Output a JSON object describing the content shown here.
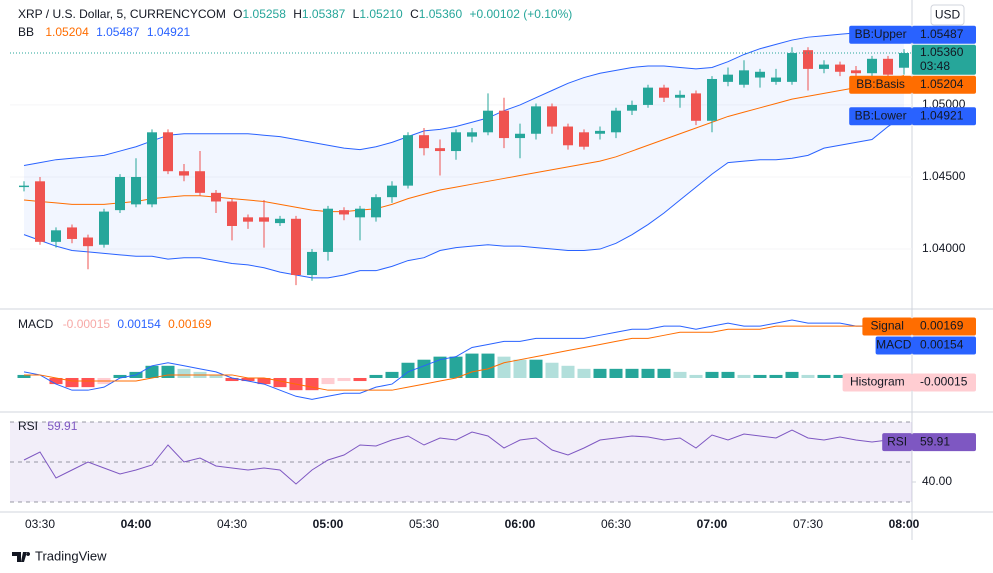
{
  "chart_data": [
    {
      "type": "candlestick",
      "title": "XRP / U.S. Dollar, 5, CURRENCYCOM",
      "ohlc": [
        {
          "label": "O",
          "value": "1.05258"
        },
        {
          "label": "H",
          "value": "1.05387"
        },
        {
          "label": "L",
          "value": "1.05210"
        },
        {
          "label": "C",
          "value": "1.05360"
        }
      ],
      "change": "+0.00102 (+0.10%)",
      "currency": "USD",
      "close_label": "1.05360",
      "countdown": "03:48",
      "up_color": "#26a69a",
      "down_color": "#ef5350",
      "categories": [
        null,
        "03:30",
        null,
        null,
        null,
        null,
        null,
        "04:00",
        null,
        null,
        null,
        null,
        null,
        "04:30",
        null,
        null,
        null,
        null,
        null,
        "05:00",
        null,
        null,
        null,
        null,
        null,
        "05:30",
        null,
        null,
        null,
        null,
        null,
        "06:00",
        null,
        null,
        null,
        null,
        null,
        "06:30",
        null,
        null,
        null,
        null,
        null,
        "07:00",
        null,
        null,
        null,
        null,
        null,
        "07:30",
        null,
        null,
        null,
        null,
        null,
        "08:00"
      ],
      "open": [
        1.0443,
        1.0447,
        1.0405,
        1.0415,
        1.0408,
        1.0403,
        1.0427,
        1.0431,
        1.0431,
        1.0481,
        1.0454,
        1.0454,
        1.0439,
        1.0433,
        1.0422,
        1.0422,
        1.0418,
        1.0421,
        1.0382,
        1.0398,
        1.0427,
        1.0422,
        1.0422,
        1.0436,
        1.0444,
        1.0479,
        1.047,
        1.0468,
        1.0478,
        1.0481,
        1.0496,
        1.0477,
        1.048,
        1.0499,
        1.0485,
        1.0481,
        1.048,
        1.0481,
        1.0496,
        1.05,
        1.0512,
        1.0505,
        1.0508,
        1.0489,
        1.0516,
        1.0514,
        1.0519,
        1.0516,
        1.0516,
        1.0538,
        1.0525,
        1.0528,
        1.0524,
        1.0522,
        1.0532,
        1.05258
      ],
      "high": [
        1.0447,
        1.045,
        1.0415,
        1.0417,
        1.041,
        1.0428,
        1.0452,
        1.0463,
        1.0483,
        1.0483,
        1.0459,
        1.0468,
        1.0441,
        1.0435,
        1.0424,
        1.0434,
        1.0423,
        1.0423,
        1.04,
        1.043,
        1.0429,
        1.043,
        1.0438,
        1.0447,
        1.0481,
        1.0484,
        1.0476,
        1.0483,
        1.0484,
        1.0508,
        1.0505,
        1.0487,
        1.0501,
        1.0501,
        1.0487,
        1.0483,
        1.0485,
        1.0498,
        1.0503,
        1.0514,
        1.0514,
        1.051,
        1.051,
        1.052,
        1.0526,
        1.0531,
        1.0525,
        1.0525,
        1.054,
        1.054,
        1.0531,
        1.053,
        1.0527,
        1.0534,
        1.0534,
        1.05387
      ],
      "low": [
        1.044,
        1.0403,
        1.0401,
        1.0404,
        1.0386,
        1.0401,
        1.0425,
        1.0429,
        1.0429,
        1.0452,
        1.0447,
        1.0437,
        1.0425,
        1.0406,
        1.0414,
        1.0401,
        1.0416,
        1.0375,
        1.0378,
        1.0392,
        1.042,
        1.0406,
        1.0419,
        1.0432,
        1.0442,
        1.0465,
        1.0451,
        1.0462,
        1.0474,
        1.0479,
        1.047,
        1.0463,
        1.0476,
        1.048,
        1.0469,
        1.0469,
        1.0476,
        1.0477,
        1.0493,
        1.0498,
        1.0502,
        1.0498,
        1.0486,
        1.0481,
        1.0513,
        1.0512,
        1.0512,
        1.0514,
        1.0514,
        1.051,
        1.0522,
        1.052,
        1.0519,
        1.0519,
        1.0519,
        1.0521
      ],
      "close": [
        1.0444,
        1.0405,
        1.0413,
        1.0407,
        1.0402,
        1.0426,
        1.045,
        1.045,
        1.0481,
        1.0454,
        1.0451,
        1.0439,
        1.0433,
        1.0416,
        1.0419,
        1.0419,
        1.0421,
        1.0382,
        1.0398,
        1.0428,
        1.0424,
        1.0428,
        1.0436,
        1.0444,
        1.0479,
        1.047,
        1.0468,
        1.0481,
        1.0481,
        1.0496,
        1.0477,
        1.048,
        1.0499,
        1.0485,
        1.0472,
        1.0471,
        1.0482,
        1.0496,
        1.05,
        1.0512,
        1.0505,
        1.0507,
        1.0489,
        1.0518,
        1.0521,
        1.0524,
        1.0523,
        1.0519,
        1.0536,
        1.0525,
        1.0528,
        1.0523,
        1.0522,
        1.0532,
        1.0521,
        1.0536
      ],
      "ylim": [
        1.03591,
        1.05728
      ],
      "yticks": [
        {
          "value": 1.04,
          "label": "1.04000"
        },
        {
          "value": 1.045,
          "label": "1.04500"
        },
        {
          "value": 1.05,
          "label": "1.05000"
        }
      ],
      "indicator": {
        "name": "BB",
        "fill": "rgba(41,98,255,0.06)",
        "series": [
          {
            "name": "BB:Upper",
            "color": "#2962ff",
            "values": [
              1.0458,
              1.046,
              1.0462,
              1.0463,
              1.0464,
              1.0465,
              1.0468,
              1.0471,
              1.0475,
              1.0479,
              1.048,
              1.048,
              1.048,
              1.048,
              1.048,
              1.0479,
              1.0478,
              1.0476,
              1.0474,
              1.0472,
              1.047,
              1.0469,
              1.0471,
              1.0474,
              1.0478,
              1.0482,
              1.0483,
              1.0485,
              1.0488,
              1.0491,
              1.0496,
              1.05,
              1.0505,
              1.051,
              1.0515,
              1.0519,
              1.0522,
              1.0524,
              1.0526,
              1.0527,
              1.0527,
              1.0526,
              1.0525,
              1.0526,
              1.053,
              1.0535,
              1.0539,
              1.0542,
              1.0545,
              1.0547,
              1.0548,
              1.0549,
              1.055,
              1.055,
              1.0549,
              1.05487
            ]
          },
          {
            "name": "BB:Basis",
            "color": "#ff6d00",
            "values": [
              1.0434,
              1.0433,
              1.0432,
              1.0431,
              1.0431,
              1.0431,
              1.0432,
              1.0433,
              1.0435,
              1.0436,
              1.0437,
              1.0437,
              1.0436,
              1.0435,
              1.0434,
              1.0433,
              1.0431,
              1.0429,
              1.0427,
              1.0426,
              1.0426,
              1.0427,
              1.0428,
              1.0431,
              1.0435,
              1.0438,
              1.0441,
              1.0443,
              1.0445,
              1.0447,
              1.0449,
              1.0451,
              1.0453,
              1.0455,
              1.0457,
              1.0459,
              1.0461,
              1.0464,
              1.0468,
              1.0472,
              1.0476,
              1.048,
              1.0484,
              1.0488,
              1.0492,
              1.0495,
              1.0498,
              1.0501,
              1.0504,
              1.0506,
              1.0508,
              1.051,
              1.0512,
              1.0514,
              1.0517,
              1.05204
            ]
          },
          {
            "name": "BB:Lower",
            "color": "#2962ff",
            "values": [
              1.041,
              1.0406,
              1.0402,
              1.0399,
              1.0398,
              1.0397,
              1.0396,
              1.0395,
              1.0395,
              1.0393,
              1.0394,
              1.0394,
              1.0392,
              1.039,
              1.0389,
              1.0387,
              1.0384,
              1.0382,
              1.038,
              1.038,
              1.0382,
              1.0385,
              1.0385,
              1.0388,
              1.0392,
              1.0394,
              1.0399,
              1.0401,
              1.0402,
              1.0403,
              1.0402,
              1.0402,
              1.0401,
              1.04,
              1.0399,
              1.0399,
              1.04,
              1.0404,
              1.041,
              1.0417,
              1.0425,
              1.0434,
              1.0443,
              1.0452,
              1.046,
              1.0461,
              1.0462,
              1.0462,
              1.0463,
              1.0465,
              1.047,
              1.0472,
              1.0474,
              1.0476,
              1.0485,
              1.04921
            ]
          }
        ]
      }
    },
    {
      "type": "macd",
      "name": "MACD",
      "ylim": [
        -0.00105,
        0.00223
      ],
      "series": [
        {
          "name": "Histogram",
          "colors": [
            "#26a69a",
            "#b2dfdb",
            "#ffcdd2",
            "#ff5252"
          ],
          "values": [
            0.0001,
            0.0,
            -0.0002,
            -0.0003,
            -0.0003,
            -0.0002,
            0.0001,
            0.0002,
            0.0004,
            0.0004,
            0.0003,
            0.0002,
            0.0001,
            -0.0001,
            -0.0001,
            -0.0002,
            -0.0003,
            -0.0004,
            -0.0004,
            -0.0002,
            -0.0001,
            -0.0001,
            0.0001,
            0.0002,
            0.0005,
            0.0006,
            0.0007,
            0.0007,
            0.0008,
            0.0008,
            0.0007,
            0.0006,
            0.0006,
            0.0005,
            0.0004,
            0.0003,
            0.0003,
            0.0003,
            0.0003,
            0.0003,
            0.0003,
            0.0002,
            0.0001,
            0.0002,
            0.0002,
            0.0001,
            0.0001,
            0.0001,
            0.0002,
            0.0001,
            0.0001,
            0.0001,
            0.0,
            0.0,
            -0.0001,
            -0.00015
          ]
        },
        {
          "name": "MACD",
          "color": "#2962ff",
          "values": [
            0.0002,
            0.0001,
            -0.0002,
            -0.0004,
            -0.0004,
            -0.0003,
            0.0,
            0.0001,
            0.0004,
            0.0005,
            0.0004,
            0.0003,
            0.0002,
            0.0,
            -0.0001,
            -0.0002,
            -0.0004,
            -0.0006,
            -0.0007,
            -0.0006,
            -0.0005,
            -0.0005,
            -0.0003,
            -0.0002,
            0.0002,
            0.0004,
            0.0006,
            0.0007,
            0.001,
            0.0011,
            0.0012,
            0.0012,
            0.0013,
            0.0013,
            0.0013,
            0.0013,
            0.0014,
            0.0015,
            0.0016,
            0.0016,
            0.0017,
            0.0017,
            0.0016,
            0.0017,
            0.0018,
            0.0017,
            0.0017,
            0.0018,
            0.0019,
            0.0018,
            0.0018,
            0.0018,
            0.0017,
            0.0017,
            0.0016,
            0.00154
          ]
        },
        {
          "name": "Signal",
          "color": "#ff6d00",
          "values": [
            0.0001,
            0.0001,
            0.0,
            -0.0001,
            -0.0001,
            -0.0001,
            -0.0001,
            -0.0001,
            0.0,
            0.0001,
            0.0001,
            0.0001,
            0.0001,
            0.0001,
            0.0,
            0.0,
            -0.0001,
            -0.0002,
            -0.0003,
            -0.0004,
            -0.0004,
            -0.0004,
            -0.0004,
            -0.0004,
            -0.0003,
            -0.0002,
            -0.0001,
            0.0,
            0.0002,
            0.0003,
            0.0005,
            0.0006,
            0.0007,
            0.0008,
            0.0009,
            0.001,
            0.0011,
            0.0012,
            0.0013,
            0.0013,
            0.0014,
            0.0015,
            0.0015,
            0.0015,
            0.0016,
            0.0016,
            0.0016,
            0.0017,
            0.0017,
            0.0017,
            0.0017,
            0.0017,
            0.0017,
            0.0017,
            0.0017,
            0.00169
          ]
        }
      ]
    },
    {
      "type": "line",
      "name": "RSI",
      "ylim": [
        26,
        73.5
      ],
      "yticks": [
        {
          "value": 40,
          "label": "40.00"
        }
      ],
      "levels": [
        70,
        50,
        30
      ],
      "band_fill": "rgba(126,87,194,0.1)",
      "series": [
        {
          "name": "RSI",
          "color": "#7e57c2",
          "values": [
            51,
            55,
            42,
            46,
            50,
            47,
            44,
            46,
            48.5,
            58.5,
            50,
            52,
            48,
            47,
            46,
            47,
            46,
            39,
            46,
            51,
            53.5,
            58.5,
            58,
            61,
            63,
            58.5,
            62,
            61,
            65,
            63,
            57,
            61,
            62,
            56,
            53.5,
            57,
            61,
            62,
            63,
            62.5,
            61,
            62,
            57,
            63.5,
            61,
            64,
            63,
            62,
            66,
            62,
            61,
            62.5,
            61,
            60,
            61,
            59.91
          ]
        }
      ]
    }
  ],
  "footer": {
    "logo": "TradingView"
  }
}
